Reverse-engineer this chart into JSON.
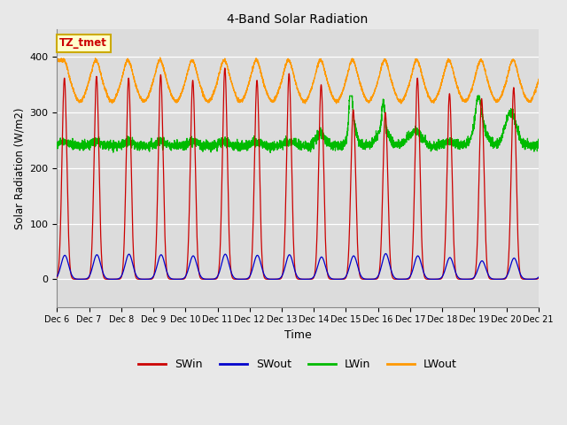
{
  "title": "4-Band Solar Radiation",
  "xlabel": "Time",
  "ylabel": "Solar Radiation (W/m2)",
  "ylim": [
    -50,
    450
  ],
  "xlim": [
    0,
    360
  ],
  "outer_bg": "#e8e8e8",
  "plot_bg_color": "#dcdcdc",
  "grid_color": "white",
  "tick_labels": [
    "Dec 6",
    "Dec 7",
    "Dec 8",
    "Dec 9",
    "Dec 10",
    "Dec 11",
    "Dec 12",
    "Dec 13",
    "Dec 14",
    "Dec 15",
    "Dec 16",
    "Dec 17",
    "Dec 18",
    "Dec 19",
    "Dec 20",
    "Dec 21"
  ],
  "tick_positions": [
    0,
    24,
    48,
    72,
    96,
    120,
    144,
    168,
    192,
    216,
    240,
    264,
    288,
    312,
    336,
    360
  ],
  "legend_labels": [
    "SWin",
    "SWout",
    "LWin",
    "LWout"
  ],
  "legend_colors": [
    "#cc0000",
    "#0000cc",
    "#00bb00",
    "#ff9900"
  ],
  "annotation_text": "TZ_tmet",
  "annotation_color": "#cc0000",
  "annotation_bg": "#ffffcc",
  "annotation_border": "#ccaa00"
}
